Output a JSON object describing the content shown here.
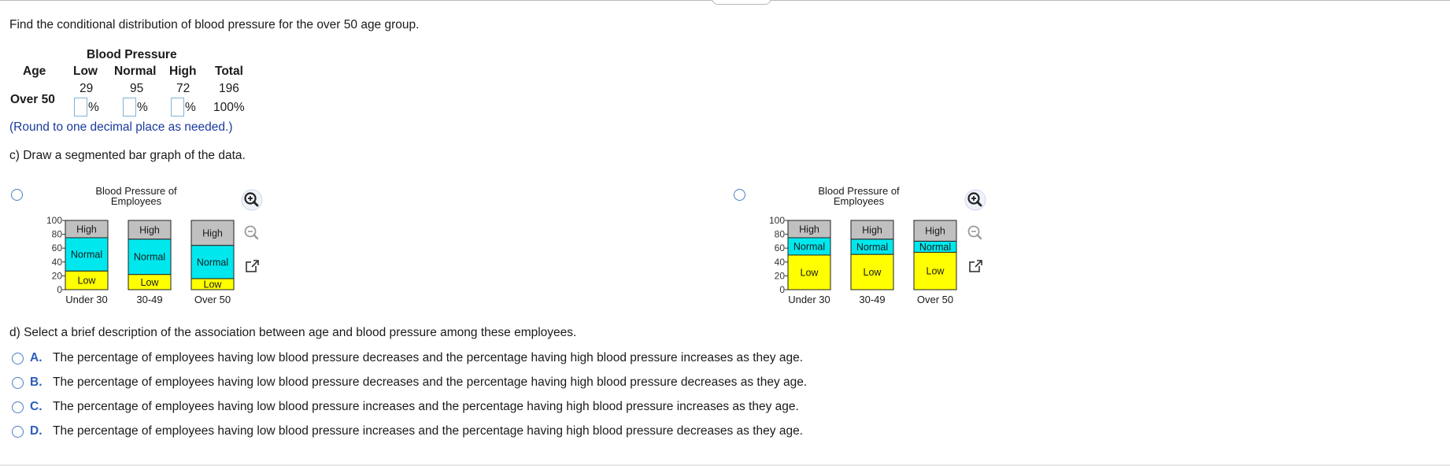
{
  "question": {
    "prompt": "Find the conditional distribution of blood pressure for the over 50 age group.",
    "table": {
      "group_header": "Blood Pressure",
      "row_header": "Age",
      "columns": [
        "Low",
        "Normal",
        "High",
        "Total"
      ],
      "row_label": "Over 50",
      "counts": [
        "29",
        "95",
        "72",
        "196"
      ],
      "pct_sign": "%",
      "total_pct": "100%",
      "inputs": [
        {
          "name": "low-percent-input",
          "value": ""
        },
        {
          "name": "normal-percent-input",
          "value": ""
        },
        {
          "name": "high-percent-input",
          "value": ""
        }
      ]
    },
    "hint": "(Round to one decimal place as needed.)"
  },
  "part_c": {
    "prompt": "c) Draw a segmented bar graph of the data."
  },
  "chart_data": [
    {
      "type": "bar",
      "stacked": true,
      "title": "Blood Pressure of Employees",
      "title_lines": [
        "Blood Pressure of",
        "Employees"
      ],
      "categories": [
        "Under 30",
        "30-49",
        "Over 50"
      ],
      "y_ticks": [
        "0",
        "20",
        "40",
        "60",
        "80",
        "100"
      ],
      "ylim": [
        0,
        100
      ],
      "series": [
        {
          "name": "Low",
          "color": "#ffff00",
          "values": [
            27,
            22,
            16
          ]
        },
        {
          "name": "Normal",
          "color": "#00e8ee",
          "values": [
            48,
            51,
            48
          ]
        },
        {
          "name": "High",
          "color": "#c0c0c0",
          "values": [
            25,
            27,
            36
          ]
        }
      ]
    },
    {
      "type": "bar",
      "stacked": true,
      "title": "Blood Pressure of Employees",
      "title_lines": [
        "Blood Pressure of",
        "Employees"
      ],
      "categories": [
        "Under 30",
        "30-49",
        "Over 50"
      ],
      "y_ticks": [
        "0",
        "20",
        "40",
        "60",
        "80",
        "100"
      ],
      "ylim": [
        0,
        100
      ],
      "series": [
        {
          "name": "Low",
          "color": "#ffff00",
          "values": [
            50,
            51,
            54
          ]
        },
        {
          "name": "Normal",
          "color": "#00e8ee",
          "values": [
            25,
            22,
            16
          ]
        },
        {
          "name": "High",
          "color": "#c0c0c0",
          "values": [
            25,
            27,
            30
          ]
        }
      ]
    }
  ],
  "part_d": {
    "prompt": "d) Select a brief description of the association between age and blood pressure among these employees.",
    "options": [
      {
        "letter": "A.",
        "text": "The percentage of employees having low blood pressure decreases and the percentage having high blood pressure increases as they age."
      },
      {
        "letter": "B.",
        "text": "The percentage of employees having low blood pressure decreases and the percentage having high blood pressure decreases as they age."
      },
      {
        "letter": "C.",
        "text": "The percentage of employees having low blood pressure increases and the percentage having high blood pressure increases as they age."
      },
      {
        "letter": "D.",
        "text": "The percentage of employees having low blood pressure increases and the percentage having high blood pressure decreases as they age."
      }
    ]
  },
  "icons": [
    "zoom-in-icon",
    "zoom-out-icon",
    "open-in-new-window-icon",
    "radio-button-icon"
  ],
  "colors": {
    "radio": "#4a7fc0",
    "option_letter": "#2b5fb8",
    "hint": "#1a3a9c",
    "input_border": "#7fb3d8"
  }
}
